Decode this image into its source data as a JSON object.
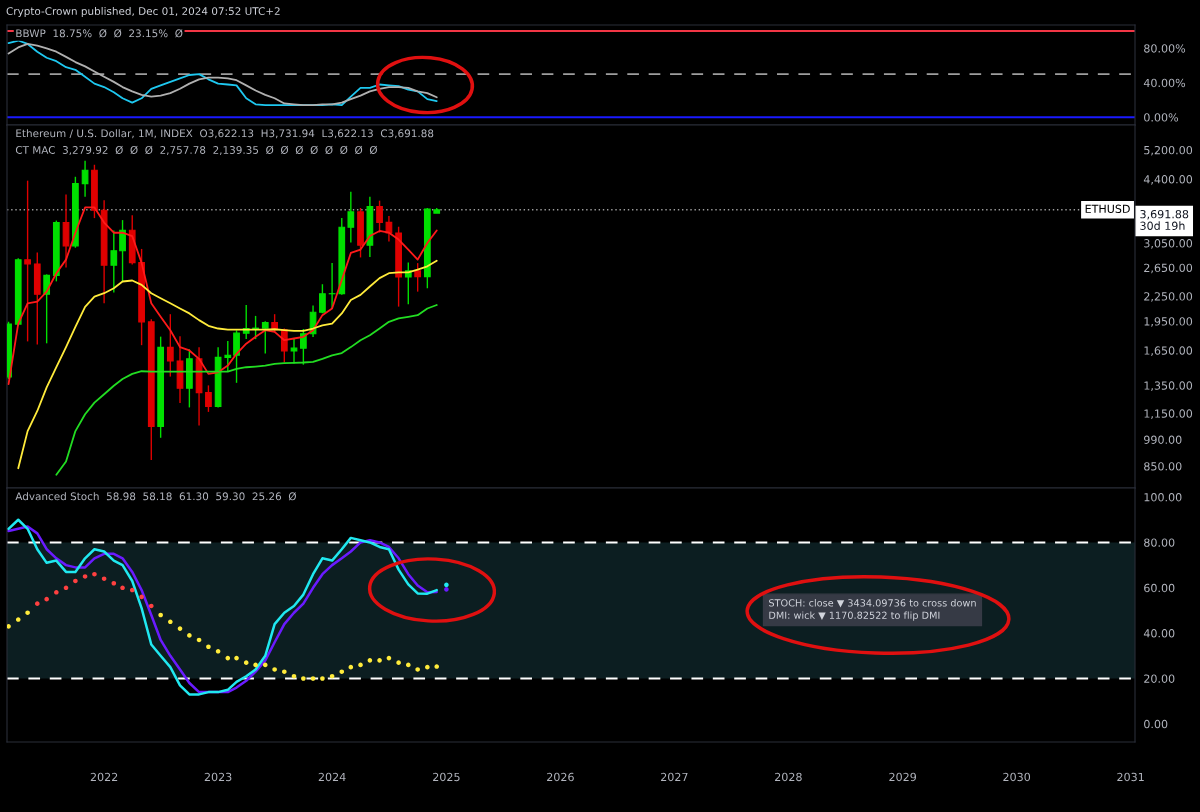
{
  "chart_data": [
    {
      "type": "line",
      "title": "BBWP  18.75%  Ø  Ø  23.15%  Ø",
      "annotations": [
        "Crypto-Crown published, Dec 01, 2024 07:52 UTC+2"
      ],
      "x": [
        "2021-03",
        "2021-04",
        "2021-05",
        "2021-06",
        "2021-07",
        "2021-08",
        "2021-09",
        "2021-10",
        "2021-11",
        "2021-12",
        "2022-01",
        "2022-02",
        "2022-03",
        "2022-04",
        "2022-05",
        "2022-06",
        "2022-07",
        "2022-08",
        "2022-09",
        "2022-10",
        "2022-11",
        "2022-12",
        "2023-01",
        "2023-02",
        "2023-03",
        "2023-04",
        "2023-05",
        "2023-06",
        "2023-07",
        "2023-08",
        "2023-09",
        "2023-10",
        "2023-11",
        "2023-12",
        "2024-01",
        "2024-02",
        "2024-03",
        "2024-04",
        "2024-05",
        "2024-06",
        "2024-07",
        "2024-08",
        "2024-09",
        "2024-10",
        "2024-11",
        "2024-12"
      ],
      "series": [
        {
          "color": "#1ec8f0",
          "values": [
            86,
            89,
            85,
            76,
            69,
            65,
            58,
            55,
            47,
            39,
            35,
            29,
            22,
            17,
            22,
            33,
            37,
            41,
            45,
            49,
            50,
            44,
            39,
            38,
            37,
            22,
            15,
            14,
            14,
            14,
            14,
            14,
            14,
            14,
            15,
            14,
            24,
            34,
            34,
            38,
            37,
            36,
            32,
            30,
            21,
            18.75
          ]
        },
        {
          "color": "#b0b0b0",
          "values": [
            74,
            81,
            85,
            83,
            80,
            76,
            70,
            64,
            59,
            53,
            47,
            41,
            35,
            30,
            26,
            24,
            25,
            28,
            33,
            39,
            44,
            46,
            46,
            45,
            43,
            37,
            31,
            26,
            22,
            16,
            15,
            14,
            14,
            15,
            15,
            17,
            21,
            25,
            30,
            33,
            35,
            35,
            34,
            30,
            28,
            23.15
          ]
        }
      ],
      "ref_lines": [
        {
          "axis": "y",
          "value": 100,
          "color": "#f23645",
          "line_style": "solid"
        },
        {
          "axis": "y",
          "value": 50,
          "color": "#9e9e9e",
          "line_style": "dashed"
        },
        {
          "axis": "y",
          "value": 0,
          "color": "#1a1aff",
          "line_style": "solid"
        }
      ],
      "xlim": [
        "2021-02-24",
        "2031-01-15"
      ],
      "ylim": [
        -9,
        107
      ],
      "yticks": [
        {
          "value": 0,
          "label": "0.00%"
        },
        {
          "value": 40,
          "label": "40.00%"
        },
        {
          "value": 80,
          "label": "80.00%"
        }
      ],
      "tick_labels": "y"
    },
    {
      "type": "candlestick",
      "title": "Ethereum / U.S. Dollar, 1M, INDEX  O3,622.13  H3,731.94  L3,622.13  C3,691.88",
      "subtitle": "CT MAC  3,279.92  Ø  Ø  Ø  2,757.78  2,139.35  Ø  Ø  Ø  Ø  Ø  Ø  Ø  Ø",
      "annotations": [
        "3,691.88",
        "30d 19h"
      ],
      "log": true,
      "x": [
        "2021-03",
        "2021-04",
        "2021-05",
        "2021-06",
        "2021-07",
        "2021-08",
        "2021-09",
        "2021-10",
        "2021-11",
        "2021-12",
        "2022-01",
        "2022-02",
        "2022-03",
        "2022-04",
        "2022-05",
        "2022-06",
        "2022-07",
        "2022-08",
        "2022-09",
        "2022-10",
        "2022-11",
        "2022-12",
        "2023-01",
        "2023-02",
        "2023-03",
        "2023-04",
        "2023-05",
        "2023-06",
        "2023-07",
        "2023-08",
        "2023-09",
        "2023-10",
        "2023-11",
        "2023-12",
        "2024-01",
        "2024-02",
        "2024-03",
        "2024-04",
        "2024-05",
        "2024-06",
        "2024-07",
        "2024-08",
        "2024-09",
        "2024-10",
        "2024-11",
        "2024-12"
      ],
      "ohlc": [
        [
          1417,
          1944,
          1400,
          1918
        ],
        [
          1918,
          2797,
          1900,
          2773
        ],
        [
          2773,
          4362,
          1737,
          2707
        ],
        [
          2707,
          2891,
          1707,
          2275
        ],
        [
          2275,
          2550,
          1718,
          2536
        ],
        [
          2536,
          3470,
          2450,
          3433
        ],
        [
          3433,
          4027,
          2652,
          3001
        ],
        [
          3001,
          4460,
          2970,
          4288
        ],
        [
          4288,
          4891,
          3980,
          4631
        ],
        [
          4631,
          4778,
          3520,
          3682
        ],
        [
          3682,
          3900,
          2160,
          2688
        ],
        [
          2688,
          3280,
          2300,
          2920
        ],
        [
          2920,
          3480,
          2450,
          3282
        ],
        [
          3282,
          3580,
          2700,
          2727
        ],
        [
          2727,
          2950,
          1700,
          1942
        ],
        [
          1942,
          1972,
          880,
          1067
        ],
        [
          1067,
          1785,
          1000,
          1678
        ],
        [
          1678,
          2030,
          1420,
          1553
        ],
        [
          1553,
          1790,
          1220,
          1328
        ],
        [
          1328,
          1660,
          1190,
          1572
        ],
        [
          1572,
          1680,
          1073,
          1295
        ],
        [
          1295,
          1350,
          1160,
          1196
        ],
        [
          1196,
          1680,
          1190,
          1585
        ],
        [
          1585,
          1740,
          1460,
          1605
        ],
        [
          1605,
          1850,
          1370,
          1821
        ],
        [
          1821,
          2140,
          1760,
          1870
        ],
        [
          1870,
          2010,
          1760,
          1874
        ],
        [
          1874,
          1950,
          1620,
          1934
        ],
        [
          1934,
          2030,
          1830,
          1857
        ],
        [
          1857,
          1870,
          1540,
          1645
        ],
        [
          1645,
          1760,
          1530,
          1671
        ],
        [
          1671,
          1865,
          1520,
          1815
        ],
        [
          1815,
          2135,
          1780,
          2052
        ],
        [
          2052,
          2410,
          2040,
          2282
        ],
        [
          2282,
          2720,
          2100,
          2283
        ],
        [
          2283,
          3520,
          2270,
          3340
        ],
        [
          3340,
          4094,
          3060,
          3647
        ],
        [
          3647,
          3730,
          2810,
          3015
        ],
        [
          3015,
          3975,
          2815,
          3760
        ],
        [
          3760,
          3890,
          3240,
          3435
        ],
        [
          3435,
          3560,
          3080,
          3232
        ],
        [
          3232,
          3350,
          2120,
          2513
        ],
        [
          2513,
          2730,
          2150,
          2603
        ],
        [
          2603,
          2720,
          2310,
          2518
        ],
        [
          2518,
          3730,
          2355,
          3706
        ],
        [
          3622.13,
          3731.94,
          3622.13,
          3691.88
        ]
      ],
      "colors": [
        "#00e000",
        "#00e000",
        "#e00000",
        "#e00000",
        "#00e000",
        "#00e000",
        "#e00000",
        "#00e000",
        "#00e000",
        "#e00000",
        "#e00000",
        "#00e000",
        "#00e000",
        "#e00000",
        "#e00000",
        "#e00000",
        "#00e000",
        "#e00000",
        "#e00000",
        "#00e000",
        "#e00000",
        "#e00000",
        "#00e000",
        "#00e000",
        "#00e000",
        "#00e000",
        "#00e000",
        "#00e000",
        "#e00000",
        "#e00000",
        "#00e000",
        "#00e000",
        "#00e000",
        "#00e000",
        "#00e000",
        "#00e000",
        "#00e000",
        "#e00000",
        "#00e000",
        "#e00000",
        "#e00000",
        "#e00000",
        "#00e000",
        "#e00000",
        "#00e000",
        "#00e000"
      ],
      "series": [
        {
          "type": "line",
          "color": "#ff1a1a",
          "values": [
            1360,
            1924,
            2161,
            2182,
            2311,
            2567,
            2775,
            3237,
            3741,
            3741,
            3431,
            3237,
            3237,
            3176,
            2723,
            2161,
            2000,
            1852,
            1681,
            1649,
            1572,
            1442,
            1455,
            1512,
            1618,
            1714,
            1783,
            1852,
            1834,
            1749,
            1766,
            1783,
            1852,
            2019,
            2097,
            2470,
            2883,
            2939,
            3176,
            3270,
            3237,
            3113,
            2939,
            2775,
            3053,
            3279.92
          ]
        },
        {
          "type": "line",
          "color": "#ffeb3b",
          "values": [
            null,
            840,
            1039,
            1166,
            1335,
            1498,
            1681,
            1888,
            2117,
            2245,
            2289,
            2356,
            2448,
            2462,
            2402,
            2289,
            2224,
            2161,
            2097,
            2039,
            1962,
            1899,
            1870,
            1859,
            1859,
            1859,
            1859,
            1859,
            1862,
            1852,
            1844,
            1844,
            1870,
            1905,
            1924,
            2039,
            2202,
            2267,
            2379,
            2496,
            2567,
            2579,
            2579,
            2619,
            2670,
            2757.78
          ]
        },
        {
          "type": "line",
          "color": "#22dd22",
          "values": [
            null,
            null,
            null,
            null,
            null,
            809,
            873,
            1039,
            1144,
            1223,
            1283,
            1347,
            1400,
            1442,
            1464,
            1461,
            1461,
            1461,
            1461,
            1461,
            1461,
            1461,
            1461,
            1461,
            1484,
            1498,
            1504,
            1512,
            1527,
            1533,
            1536,
            1539,
            1545,
            1572,
            1603,
            1625,
            1681,
            1749,
            1799,
            1870,
            1943,
            1981,
            2000,
            2019,
            2097,
            2139.35
          ]
        }
      ],
      "ref_lines": [
        {
          "axis": "y",
          "value": 3691.88,
          "label": "ETHUSD",
          "color": "#9e9e9e",
          "line_style": "dotted"
        }
      ],
      "xlim": [
        "2021-02-24",
        "2031-01-15"
      ],
      "ylim": [
        750,
        6000
      ],
      "yticks": [
        {
          "value": 850,
          "label": "850.00"
        },
        {
          "value": 990,
          "label": "990.00"
        },
        {
          "value": 1150,
          "label": "1,150.00"
        },
        {
          "value": 1350,
          "label": "1,350.00"
        },
        {
          "value": 1650,
          "label": "1,650.00"
        },
        {
          "value": 1950,
          "label": "1,950.00"
        },
        {
          "value": 2250,
          "label": "2,250.00"
        },
        {
          "value": 2650,
          "label": "2,650.00"
        },
        {
          "value": 3050,
          "label": "3,050.00"
        },
        {
          "value": 4400,
          "label": "4,400.00"
        },
        {
          "value": 5200,
          "label": "5,200.00"
        }
      ],
      "tick_labels": "y"
    },
    {
      "type": "line",
      "title": "Advanced Stoch  58.98  58.18  61.30  59.30  25.26  Ø",
      "annotations": [
        "STOCH: close ▼ 3434.09736 to cross down\nDMI: wick ▼ 1170.82522 to flip DMI"
      ],
      "x": [
        "2021-03",
        "2021-04",
        "2021-05",
        "2021-06",
        "2021-07",
        "2021-08",
        "2021-09",
        "2021-10",
        "2021-11",
        "2021-12",
        "2022-01",
        "2022-02",
        "2022-03",
        "2022-04",
        "2022-05",
        "2022-06",
        "2022-07",
        "2022-08",
        "2022-09",
        "2022-10",
        "2022-11",
        "2022-12",
        "2023-01",
        "2023-02",
        "2023-03",
        "2023-04",
        "2023-05",
        "2023-06",
        "2023-07",
        "2023-08",
        "2023-09",
        "2023-10",
        "2023-11",
        "2023-12",
        "2024-01",
        "2024-02",
        "2024-03",
        "2024-04",
        "2024-05",
        "2024-06",
        "2024-07",
        "2024-08",
        "2024-09",
        "2024-10",
        "2024-11",
        "2024-12"
      ],
      "series": [
        {
          "type": "scatter",
          "marker": "circle",
          "colors": [
            "#ffeb3b",
            "#ffeb3b",
            "#ffeb3b",
            "#ff4040",
            "#ff4040",
            "#ff4040",
            "#ff4040",
            "#ff4040",
            "#ff4040",
            "#ff4040",
            "#ff4040",
            "#ff4040",
            "#ff4040",
            "#ff4040",
            "#ff4040",
            "#ff4040",
            "#ffeb3b",
            "#ffeb3b",
            "#ffeb3b",
            "#ffeb3b",
            "#ffeb3b",
            "#ffeb3b",
            "#ffeb3b",
            "#ffeb3b",
            "#ffeb3b",
            "#ffeb3b",
            "#ffeb3b",
            "#ffeb3b",
            "#ffeb3b",
            "#ffeb3b",
            "#ffeb3b",
            "#ffeb3b",
            "#ffeb3b",
            "#ffeb3b",
            "#ffeb3b",
            "#ffeb3b",
            "#ffeb3b",
            "#ffeb3b",
            "#ffeb3b",
            "#ffeb3b",
            "#ffeb3b",
            "#ffeb3b",
            "#ffeb3b",
            "#ffeb3b",
            "#ffeb3b",
            "#ffeb3b"
          ],
          "values": [
            43,
            46,
            49,
            53,
            55,
            58,
            60,
            63,
            65,
            66,
            64,
            62,
            60,
            59,
            56,
            52,
            48,
            45,
            42,
            39,
            37,
            34,
            32,
            29,
            29,
            27,
            26,
            26,
            24,
            23,
            21,
            20,
            20,
            20,
            21,
            23,
            25,
            26,
            28,
            28,
            29,
            27,
            26,
            24,
            25,
            25.26
          ]
        },
        {
          "color": "#6a1bff",
          "values": [
            85,
            86,
            87,
            84,
            77,
            73,
            70,
            69,
            69,
            73,
            75,
            75,
            73,
            67,
            59,
            48,
            37,
            30,
            24,
            18,
            14,
            14,
            14,
            14,
            16,
            19,
            23,
            28,
            36,
            44,
            49,
            53,
            60,
            66,
            70,
            73,
            76,
            80,
            81,
            80,
            78,
            73,
            66,
            61,
            58,
            58.18
          ]
        },
        {
          "color": "#20e8f0",
          "values": [
            86,
            90,
            86,
            77,
            71,
            72,
            67,
            67,
            73,
            77,
            76,
            72,
            70,
            63,
            51,
            35,
            30,
            25,
            17,
            13,
            13,
            14,
            14,
            15,
            18.5,
            21,
            24,
            30,
            44,
            49,
            52,
            57,
            66,
            73,
            72,
            77,
            82,
            81,
            80,
            78,
            77,
            68,
            61.5,
            57.5,
            57.4,
            58.98
          ]
        },
        {
          "type": "scatter",
          "marker": "circle",
          "color": "#20e8f0",
          "x": [
            "2025-01"
          ],
          "values": [
            61.3
          ]
        },
        {
          "type": "scatter",
          "marker": "circle",
          "color": "#6a1bff",
          "x": [
            "2025-01"
          ],
          "values": [
            59.3
          ]
        }
      ],
      "ref_lines": [
        {
          "axis": "y",
          "value": 80,
          "color": "#ffffff",
          "line_style": "dashed"
        },
        {
          "axis": "y",
          "value": 20,
          "color": "#ffffff",
          "line_style": "dashed"
        }
      ],
      "bands": [
        {
          "axis": "y",
          "from": 20,
          "to": 80,
          "color": "#0c1e21"
        }
      ],
      "xlim": [
        "2021-02-24",
        "2031-01-15"
      ],
      "ylim": [
        -8,
        104
      ],
      "xticks": [
        "2022",
        "2023",
        "2024",
        "2025",
        "2026",
        "2027",
        "2028",
        "2029",
        "2030",
        "2031"
      ],
      "yticks": [
        {
          "value": 0,
          "label": "0.00"
        },
        {
          "value": 20,
          "label": "20.00"
        },
        {
          "value": 40,
          "label": "40.00"
        },
        {
          "value": 60,
          "label": "60.00"
        },
        {
          "value": 80,
          "label": "80.00"
        },
        {
          "value": 100,
          "label": "100.00"
        }
      ]
    }
  ]
}
